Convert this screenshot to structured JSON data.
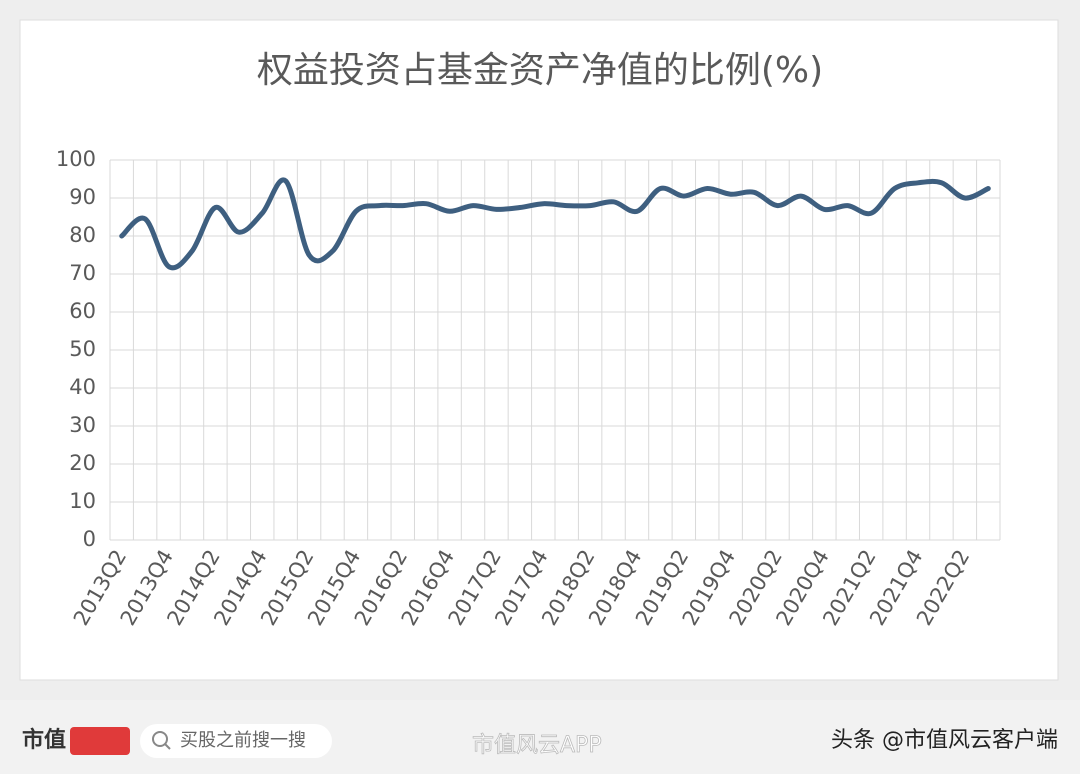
{
  "chart_data": {
    "type": "line",
    "title": "权益投资占基金资产净值的比例(%)",
    "categories": [
      "2013Q2",
      null,
      "2013Q4",
      null,
      "2014Q2",
      null,
      "2014Q4",
      null,
      "2015Q2",
      null,
      "2015Q4",
      null,
      "2016Q2",
      null,
      "2016Q4",
      null,
      "2017Q2",
      null,
      "2017Q4",
      null,
      "2018Q2",
      null,
      "2018Q4",
      null,
      "2019Q2",
      null,
      "2019Q4",
      null,
      "2020Q2",
      null,
      "2020Q4",
      null,
      "2021Q2",
      null,
      "2021Q4",
      null,
      "2022Q2",
      null
    ],
    "series": [
      {
        "color": "#3e5f80",
        "values": [
          80,
          84.5,
          72,
          76,
          87.5,
          81,
          86,
          94.5,
          75,
          76,
          86.5,
          88,
          88,
          88.5,
          86.5,
          88,
          87,
          87.5,
          88.5,
          88,
          88,
          89,
          86.5,
          92.5,
          90.5,
          92.5,
          91,
          91.5,
          88,
          90.5,
          87,
          88,
          86,
          92.5,
          94,
          94,
          90,
          92.5
        ]
      }
    ],
    "ylim": [
      0,
      100
    ],
    "yticks": [
      0,
      10,
      20,
      30,
      40,
      50,
      60,
      70,
      80,
      90,
      100
    ],
    "grid": true
  },
  "footer": {
    "logo": "市值",
    "search": "买股之前搜一搜",
    "app": "市值风云APP",
    "source": "头条 @市值风云客户端"
  }
}
